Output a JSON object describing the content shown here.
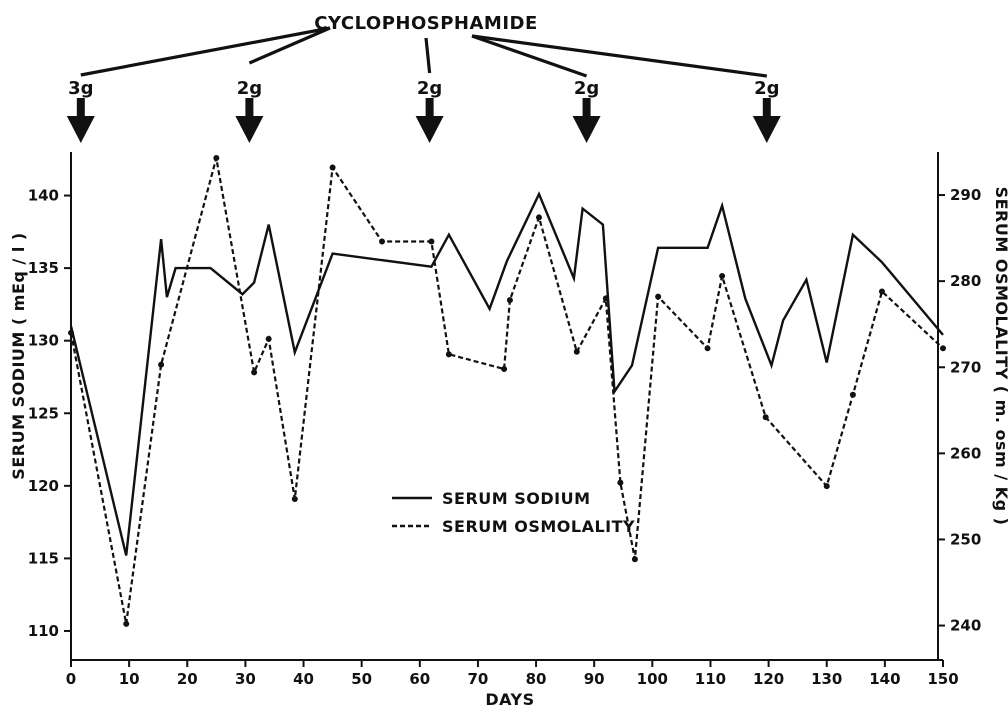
{
  "chart_data": {
    "type": "line",
    "xlabel": "DAYS",
    "ylabel_left": "SERUM SODIUM ( mEq / l )",
    "ylabel_right": "SERUM OSMOLALITY ( m. osm / Kg )",
    "xlim": [
      0,
      150
    ],
    "ylim_left": [
      108,
      143
    ],
    "ylim_right": [
      236,
      295
    ],
    "x_ticks": [
      "0",
      "10",
      "20",
      "30",
      "40",
      "50",
      "60",
      "70",
      "80",
      "90",
      "100",
      "110",
      "120",
      "130",
      "140",
      "150"
    ],
    "y_left_ticks": [
      "110",
      "115",
      "120",
      "125",
      "130",
      "135",
      "140"
    ],
    "y_right_ticks": [
      "240",
      "250",
      "260",
      "270",
      "280",
      "290"
    ],
    "grid": false,
    "legend_position": "bottom-center",
    "annotation": {
      "title": "CYCLOPHOSPHAMIDE",
      "doses": [
        {
          "day": 1,
          "label": "3g"
        },
        {
          "day": 30,
          "label": "2g"
        },
        {
          "day": 61,
          "label": "2g"
        },
        {
          "day": 88,
          "label": "2g"
        },
        {
          "day": 119,
          "label": "2g"
        }
      ]
    },
    "series": [
      {
        "name": "SERUM SODIUM",
        "axis": "left",
        "style": "solid",
        "x": [
          0,
          9.5,
          15.5,
          16.5,
          18,
          24,
          29.5,
          31.5,
          34,
          38.5,
          45,
          62,
          65,
          72,
          75,
          80.5,
          86.5,
          88,
          91.5,
          93.5,
          96.5,
          101,
          109.5,
          112,
          116,
          120.5,
          122.5,
          126.5,
          130,
          134.5,
          139.5,
          150
        ],
        "y": [
          131,
          115.2,
          137,
          133,
          135,
          135,
          133.2,
          134,
          138,
          129.2,
          136,
          135.1,
          137.3,
          132.2,
          135.5,
          140.1,
          134.3,
          139.1,
          138,
          126.5,
          128.3,
          136.4,
          136.4,
          139.3,
          132.9,
          128.3,
          131.4,
          134.2,
          128.5,
          137.3,
          135.4,
          130.4
        ]
      },
      {
        "name": "SERUM OSMOLALITY",
        "axis": "right",
        "style": "dashed",
        "x": [
          0,
          9.5,
          15.5,
          25,
          31.5,
          34,
          38.5,
          45,
          53.5,
          62,
          65,
          74.5,
          75.5,
          80.5,
          87,
          92,
          94.5,
          97,
          101,
          109.5,
          112,
          119.5,
          130,
          134.5,
          139.5,
          150
        ],
        "y": [
          274,
          240.2,
          270.3,
          294.3,
          269.4,
          273.3,
          254.7,
          293.2,
          284.6,
          284.6,
          271.5,
          269.8,
          277.8,
          287.4,
          271.8,
          278,
          256.6,
          247.7,
          278.2,
          272.2,
          280.6,
          264.2,
          256.2,
          266.8,
          278.8,
          272.2
        ]
      }
    ]
  }
}
